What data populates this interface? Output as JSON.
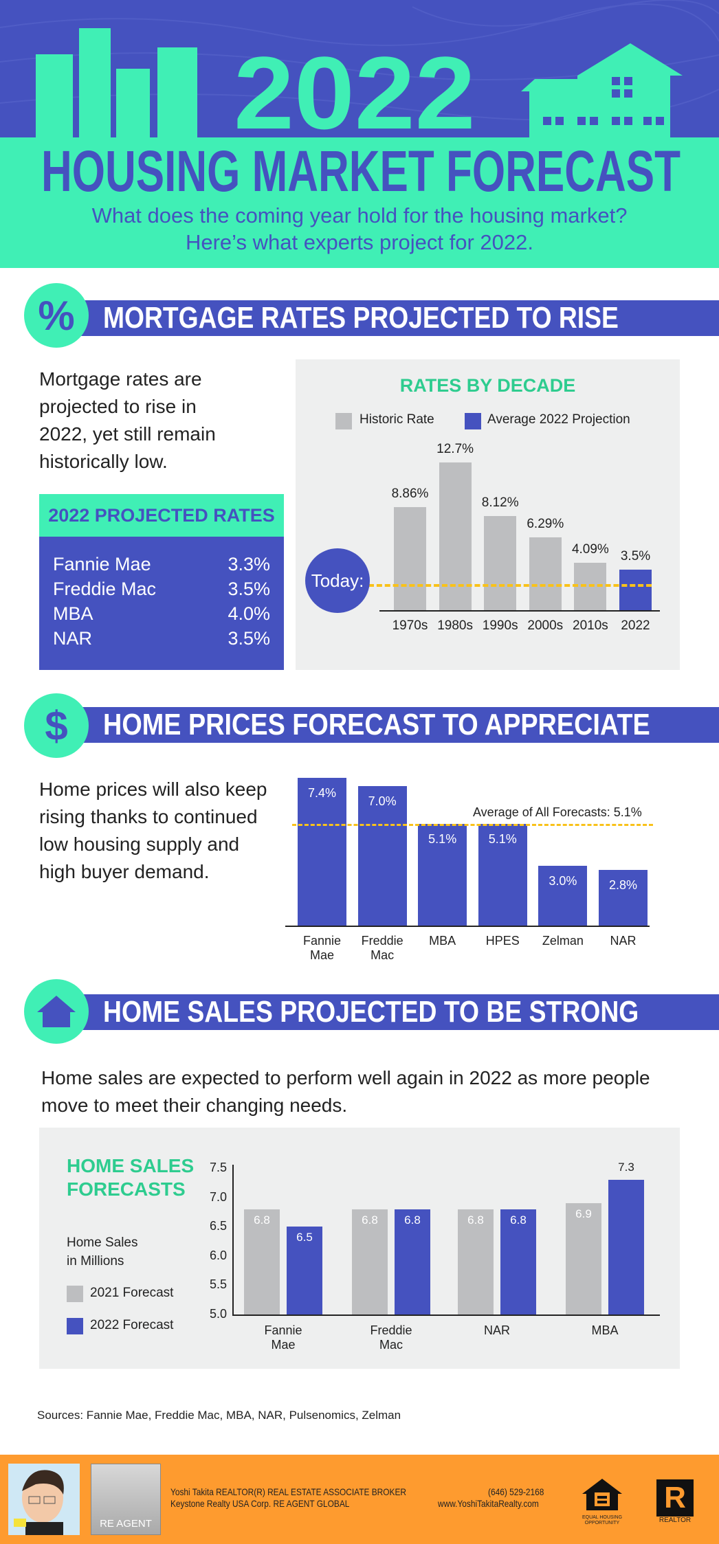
{
  "colors": {
    "purple": "#4552BF",
    "mint": "#40EFB5",
    "mint_text": "#2ECC8F",
    "grey": "#BDBEC0",
    "panel": "#EEEFEF",
    "yellow": "#F9C21A",
    "orange": "#FE9B2F"
  },
  "header": {
    "year": "2022",
    "title": "HOUSING MARKET FORECAST",
    "subtitle_1": "What does the coming year hold for the housing market?",
    "subtitle_2": "Here’s what experts project for 2022."
  },
  "mortgage": {
    "icon": "percent-icon",
    "icon_glyph": "%",
    "title": "MORTGAGE RATES PROJECTED TO RISE",
    "text_lines": [
      "Mortgage rates are",
      "projected to rise in",
      "2022, yet still remain",
      "historically low."
    ],
    "rates_box": {
      "title": "2022 PROJECTED RATES",
      "rows": [
        {
          "name": "Fannie Mae",
          "value": "3.3%"
        },
        {
          "name": "Freddie Mac",
          "value": "3.5%"
        },
        {
          "name": "MBA",
          "value": "4.0%"
        },
        {
          "name": "NAR",
          "value": "3.5%"
        }
      ]
    },
    "today_label": "Today:"
  },
  "prices": {
    "icon": "dollar-icon",
    "icon_glyph": "$",
    "title": "HOME PRICES FORECAST TO APPRECIATE",
    "text_lines": [
      "Home prices will also keep",
      "rising thanks to continued",
      "low housing supply and",
      "high buyer demand."
    ]
  },
  "sales": {
    "icon": "house-icon",
    "title": "HOME SALES PROJECTED TO BE STRONG",
    "text_lines": [
      "Home sales are expected to perform well again in 2022 as more people",
      "move to meet their changing needs."
    ],
    "panel_title_1": "HOME SALES",
    "panel_title_2": "FORECASTS",
    "unit_1": "Home Sales",
    "unit_2": "in Millions"
  },
  "sources": "Sources: Fannie Mae, Freddie Mac, MBA, NAR, Pulsenomics, Zelman",
  "footer": {
    "line_1": "Yoshi Takita REALTOR(R) REAL ESTATE ASSOCIATE BROKER",
    "line_2": "Keystone Realty USA Corp.  RE AGENT GLOBAL",
    "phone": "(646) 529-2168",
    "website": "www.YoshiTakitaRealty.com",
    "re_agent_logo": "RE AGENT",
    "equal_housing": "EQUAL HOUSING OPPORTUNITY",
    "realtor": "REALTOR"
  },
  "chart_data": [
    {
      "type": "bar",
      "title": "RATES BY DECADE",
      "categories": [
        "1970s",
        "1980s",
        "1990s",
        "2000s",
        "2010s",
        "2022"
      ],
      "values": [
        8.86,
        12.7,
        8.12,
        6.29,
        4.09,
        3.5
      ],
      "labels": [
        "8.86%",
        "12.7%",
        "8.12%",
        "6.29%",
        "4.09%",
        "3.5%"
      ],
      "series_of_point": [
        "Historic Rate",
        "Historic Rate",
        "Historic Rate",
        "Historic Rate",
        "Historic Rate",
        "Average 2022 Projection"
      ],
      "legend": [
        {
          "name": "Historic Rate",
          "color": "#BDBEC0"
        },
        {
          "name": "Average 2022 Projection",
          "color": "#4552BF"
        }
      ],
      "legend_position": "top",
      "reference_line": {
        "label": "Today:",
        "style": "dashed",
        "color": "#F9C21A"
      },
      "unit": "%"
    },
    {
      "type": "bar",
      "categories": [
        [
          "Fannie",
          "Mae"
        ],
        [
          "Freddie",
          "Mac"
        ],
        [
          "MBA"
        ],
        [
          "HPES"
        ],
        [
          "Zelman"
        ],
        [
          "NAR"
        ]
      ],
      "values": [
        7.4,
        7.0,
        5.1,
        5.1,
        3.0,
        2.8
      ],
      "labels": [
        "7.4%",
        "7.0%",
        "5.1%",
        "5.1%",
        "3.0%",
        "2.8%"
      ],
      "reference_line": {
        "value": 5.1,
        "label": "Average of All Forecasts: 5.1%",
        "style": "dashed",
        "color": "#F9C21A"
      },
      "unit": "%"
    },
    {
      "type": "bar",
      "title": "HOME SALES FORECASTS",
      "ylabel": "Home Sales in Millions",
      "ylim": [
        5.0,
        7.5
      ],
      "yticks": [
        "7.5",
        "7.0",
        "6.5",
        "6.0",
        "5.5",
        "5.0"
      ],
      "categories": [
        [
          "Fannie",
          "Mae"
        ],
        [
          "Freddie",
          "Mac"
        ],
        [
          "NAR"
        ],
        [
          "MBA"
        ]
      ],
      "series": [
        {
          "name": "2021 Forecast",
          "color": "#BDBEC0",
          "values": [
            6.8,
            6.8,
            6.8,
            6.9
          ]
        },
        {
          "name": "2022 Forecast",
          "color": "#4552BF",
          "values": [
            6.5,
            6.8,
            6.8,
            7.3
          ]
        }
      ],
      "legend_position": "left"
    }
  ]
}
